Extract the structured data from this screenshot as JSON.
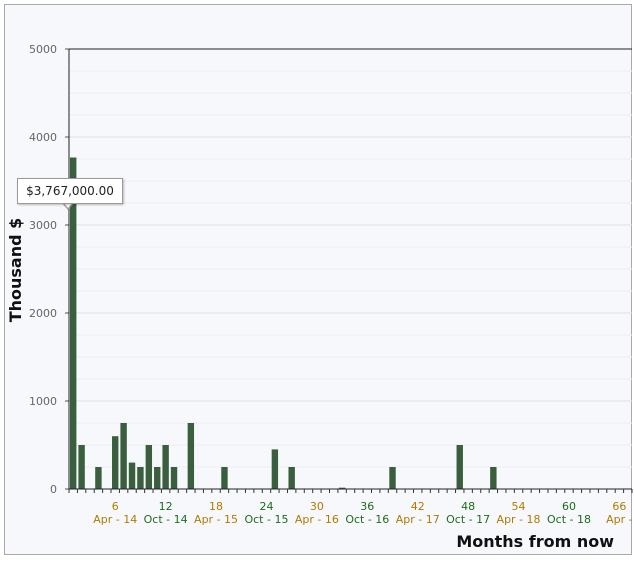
{
  "chart_data": {
    "type": "bar",
    "xlabel": "Months from now",
    "ylabel": "Thousand $",
    "ylim": [
      0,
      5000
    ],
    "xlim": [
      0,
      67
    ],
    "yticks": [
      0,
      1000,
      2000,
      3000,
      4000,
      5000
    ],
    "xticks": [
      {
        "value": 6,
        "label": "6",
        "date": "Apr - 14",
        "date_color": "#b07a00"
      },
      {
        "value": 12,
        "label": "12",
        "date": "Oct - 14",
        "date_color": "#1e6b1e"
      },
      {
        "value": 18,
        "label": "18",
        "date": "Apr - 15",
        "date_color": "#b07a00"
      },
      {
        "value": 24,
        "label": "24",
        "date": "Oct - 15",
        "date_color": "#1e6b1e"
      },
      {
        "value": 30,
        "label": "30",
        "date": "Apr - 16",
        "date_color": "#b07a00"
      },
      {
        "value": 36,
        "label": "36",
        "date": "Oct - 16",
        "date_color": "#1e6b1e"
      },
      {
        "value": 42,
        "label": "42",
        "date": "Apr - 17",
        "date_color": "#b07a00"
      },
      {
        "value": 48,
        "label": "48",
        "date": "Oct - 17",
        "date_color": "#1e6b1e"
      },
      {
        "value": 54,
        "label": "54",
        "date": "Apr - 18",
        "date_color": "#b07a00"
      },
      {
        "value": 60,
        "label": "60",
        "date": "Oct - 18",
        "date_color": "#1e6b1e"
      },
      {
        "value": 66,
        "label": "66",
        "date": "Apr -",
        "date_color": "#b07a00"
      }
    ],
    "x": [
      0,
      1,
      3,
      5,
      6,
      7,
      8,
      9,
      10,
      11,
      12,
      14,
      18,
      24,
      26,
      32,
      38,
      46,
      50
    ],
    "values": [
      3767,
      500,
      250,
      600,
      750,
      300,
      250,
      500,
      250,
      500,
      250,
      750,
      250,
      450,
      250,
      15,
      250,
      500,
      250
    ],
    "bar_color": "#3a5f3f",
    "grid": true,
    "tooltip": "$3,767,000.00"
  }
}
